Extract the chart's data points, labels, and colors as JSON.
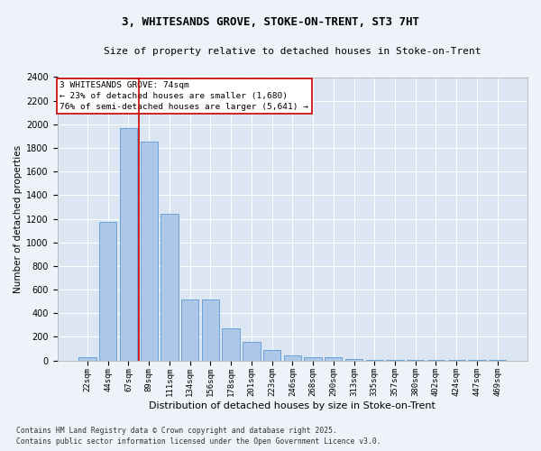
{
  "title_line1": "3, WHITESANDS GROVE, STOKE-ON-TRENT, ST3 7HT",
  "title_line2": "Size of property relative to detached houses in Stoke-on-Trent",
  "xlabel": "Distribution of detached houses by size in Stoke-on-Trent",
  "ylabel": "Number of detached properties",
  "categories": [
    "22sqm",
    "44sqm",
    "67sqm",
    "89sqm",
    "111sqm",
    "134sqm",
    "156sqm",
    "178sqm",
    "201sqm",
    "223sqm",
    "246sqm",
    "268sqm",
    "290sqm",
    "313sqm",
    "335sqm",
    "357sqm",
    "380sqm",
    "402sqm",
    "424sqm",
    "447sqm",
    "469sqm"
  ],
  "values": [
    25,
    1170,
    1970,
    1850,
    1240,
    515,
    515,
    270,
    155,
    85,
    45,
    30,
    28,
    10,
    5,
    4,
    3,
    2,
    2,
    1,
    1
  ],
  "bar_color": "#aec6e8",
  "bar_edge_color": "#5b9bd5",
  "vline_color": "#cc0000",
  "annotation_title": "3 WHITESANDS GROVE: 74sqm",
  "annotation_line2": "← 23% of detached houses are smaller (1,680)",
  "annotation_line3": "76% of semi-detached houses are larger (5,641) →",
  "annotation_box_color": "#cc0000",
  "ylim": [
    0,
    2400
  ],
  "yticks": [
    0,
    200,
    400,
    600,
    800,
    1000,
    1200,
    1400,
    1600,
    1800,
    2000,
    2200,
    2400
  ],
  "footer_line1": "Contains HM Land Registry data © Crown copyright and database right 2025.",
  "footer_line2": "Contains public sector information licensed under the Open Government Licence v3.0.",
  "bg_color": "#eef2f9",
  "plot_bg_color": "#dce6f2",
  "grid_color": "#ffffff"
}
